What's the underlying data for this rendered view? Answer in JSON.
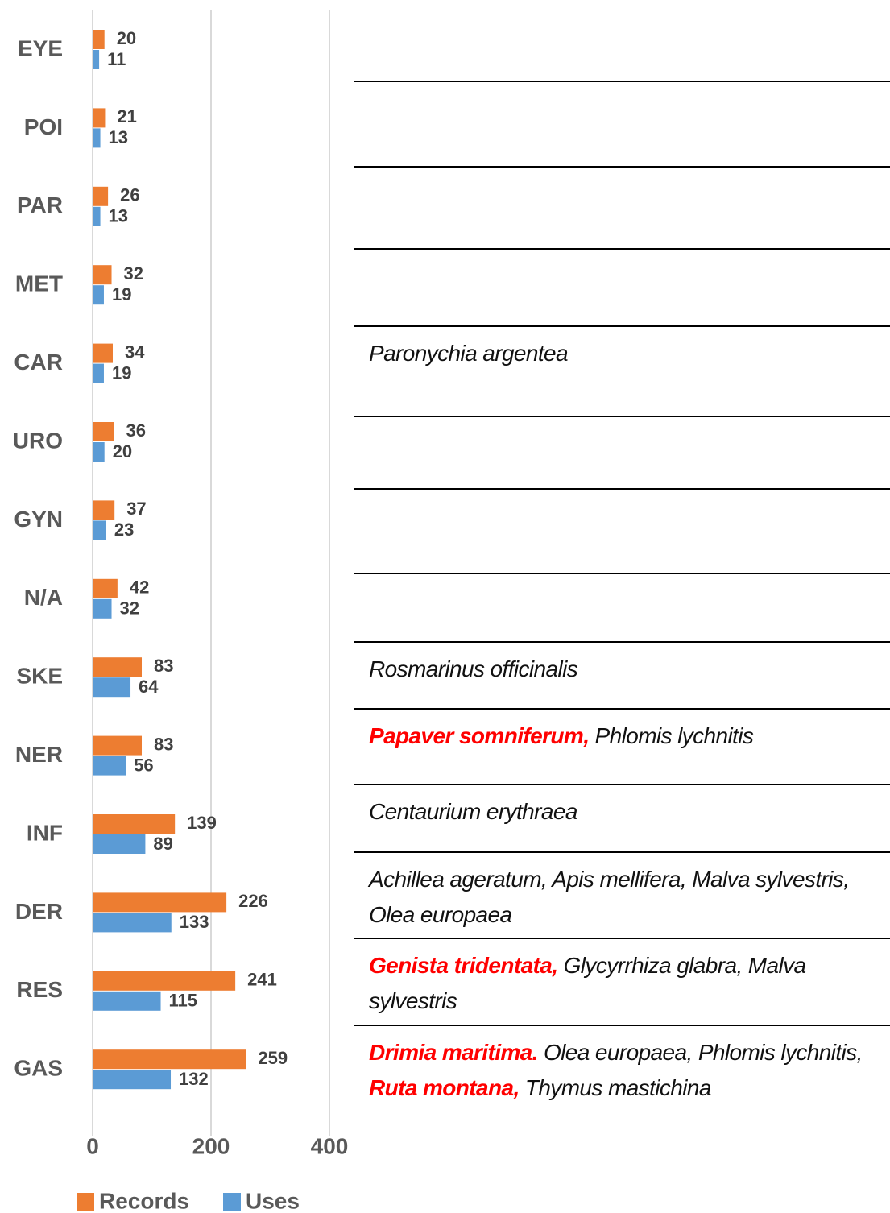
{
  "chart_data": {
    "type": "bar",
    "orientation": "horizontal",
    "categories": [
      "EYE",
      "POI",
      "PAR",
      "MET",
      "CAR",
      "URO",
      "GYN",
      "N/A",
      "SKE",
      "NER",
      "INF",
      "DER",
      "RES",
      "GAS"
    ],
    "series": [
      {
        "name": "Records",
        "color": "#ed7d31",
        "values": [
          20,
          21,
          26,
          32,
          34,
          36,
          37,
          42,
          83,
          83,
          139,
          226,
          241,
          259
        ]
      },
      {
        "name": "Uses",
        "color": "#5b9bd5",
        "values": [
          11,
          13,
          13,
          19,
          19,
          20,
          23,
          32,
          64,
          56,
          89,
          133,
          115,
          132
        ]
      }
    ],
    "xlim": [
      0,
      400
    ],
    "xticks": [
      0,
      200,
      400
    ],
    "grid": true,
    "legend": "bottom"
  },
  "table": {
    "emphasis_color": "#ff0000",
    "rows": [
      [],
      [],
      [],
      [],
      [
        {
          "text": "Paronychia argentea"
        }
      ],
      [],
      [],
      [],
      [
        {
          "text": "Rosmarinus officinalis"
        }
      ],
      [
        {
          "text": "Papaver somniferum,",
          "emphasis": true
        },
        {
          "text": " Phlomis lychnitis"
        }
      ],
      [
        {
          "text": "Centaurium erythraea"
        }
      ],
      [
        {
          "text": "Achillea ageratum, Apis mellifera, Malva sylvestris, Olea europaea"
        }
      ],
      [
        {
          "text": "Genista tridentata,",
          "emphasis": true
        },
        {
          "text": " Glycyrrhiza glabra, Malva sylvestris"
        }
      ],
      [
        {
          "text": "Drimia maritima.",
          "emphasis": true
        },
        {
          "text": " Olea europaea, Phlomis lychnitis, "
        },
        {
          "text": "Ruta montana,",
          "emphasis": true
        },
        {
          "text": " Thymus mastichina"
        }
      ]
    ]
  }
}
